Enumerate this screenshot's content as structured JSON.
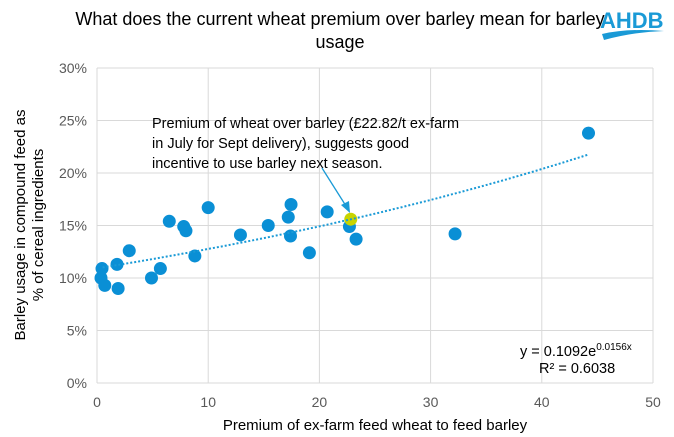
{
  "logo_text": "AHDB",
  "colors": {
    "points": "#0a8fd5",
    "highlight": "#c8d400",
    "trend": "#1a9ad6",
    "grid": "#d9d9d9",
    "logo": "#1a9ad6"
  },
  "chart_data": {
    "type": "scatter",
    "title": "What does the current wheat premium over barley mean for barley usage",
    "xlabel": "Premium of ex-farm feed wheat to feed barley",
    "ylabel": "Barley usage in compound feed as % of cereal ingredients",
    "xlim": [
      0,
      50
    ],
    "ylim": [
      0,
      30
    ],
    "xticks": [
      "0",
      "10",
      "20",
      "30",
      "40",
      "50"
    ],
    "yticks": [
      "0%",
      "5%",
      "10%",
      "15%",
      "20%",
      "25%",
      "30%"
    ],
    "grid": true,
    "points": [
      [
        0.36,
        10.0
      ],
      [
        0.45,
        10.9
      ],
      [
        0.7,
        9.3
      ],
      [
        1.8,
        11.3
      ],
      [
        1.9,
        9.0
      ],
      [
        2.9,
        12.6
      ],
      [
        4.9,
        10.0
      ],
      [
        5.7,
        10.9
      ],
      [
        6.5,
        15.4
      ],
      [
        7.8,
        14.9
      ],
      [
        8.0,
        14.5
      ],
      [
        8.8,
        12.1
      ],
      [
        10.0,
        16.7
      ],
      [
        12.9,
        14.1
      ],
      [
        15.4,
        15.0
      ],
      [
        17.2,
        15.8
      ],
      [
        17.45,
        17.0
      ],
      [
        17.4,
        14.0
      ],
      [
        19.1,
        12.4
      ],
      [
        20.7,
        16.3
      ],
      [
        22.7,
        14.9
      ],
      [
        23.3,
        13.7
      ],
      [
        32.2,
        14.2
      ],
      [
        44.2,
        23.8
      ]
    ],
    "highlight_point": [
      22.82,
      15.6
    ],
    "trendline": {
      "type": "exponential",
      "a": 0.1092,
      "b": 0.0156,
      "x_range": [
        0.5,
        44.2
      ],
      "equation_prefix": "y = 0.1092e",
      "equation_exp": "0.0156x",
      "r2_label": "R² = 0.6038"
    },
    "annotation": [
      "Premium of wheat over barley (£22.82/t ex-farm",
      "in July for Sept delivery), suggests good",
      "incentive to use barley next season."
    ]
  }
}
